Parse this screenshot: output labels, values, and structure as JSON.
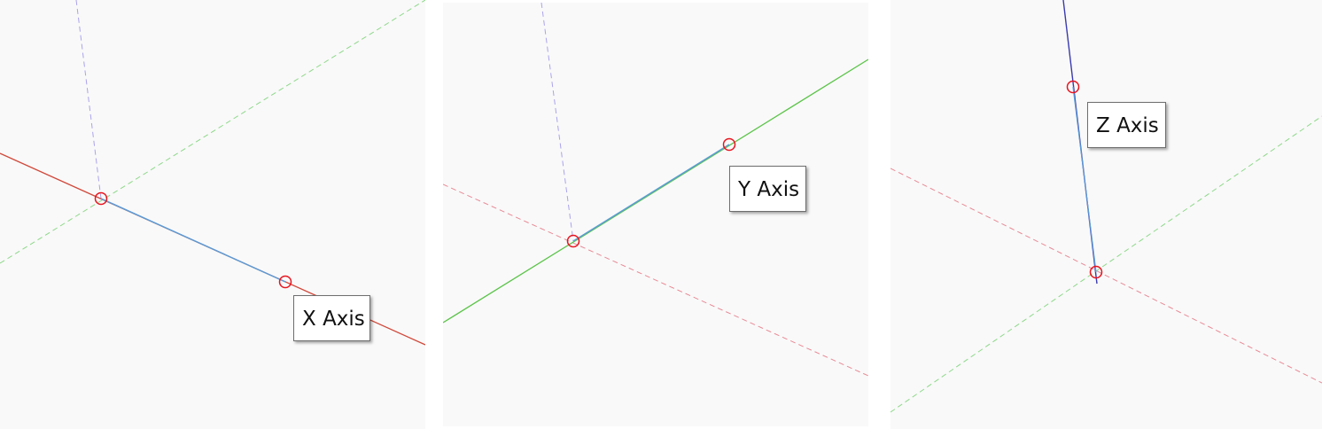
{
  "panels": [
    {
      "id": "x",
      "tooltip": "X Axis"
    },
    {
      "id": "y",
      "tooltip": "Y Axis"
    },
    {
      "id": "z",
      "tooltip": "Z Axis"
    }
  ],
  "colors": {
    "background": "#f9f9f9",
    "x_axis": "#d04a3c",
    "y_axis": "#5cc44a",
    "z_axis": "#3a3ab0",
    "selected_edge": "#5b9bd5",
    "endpoint_marker": "#e8141e",
    "guide_x": "#e88a96",
    "guide_y": "#8ed88a",
    "guide_z": "#a9a3ec"
  }
}
